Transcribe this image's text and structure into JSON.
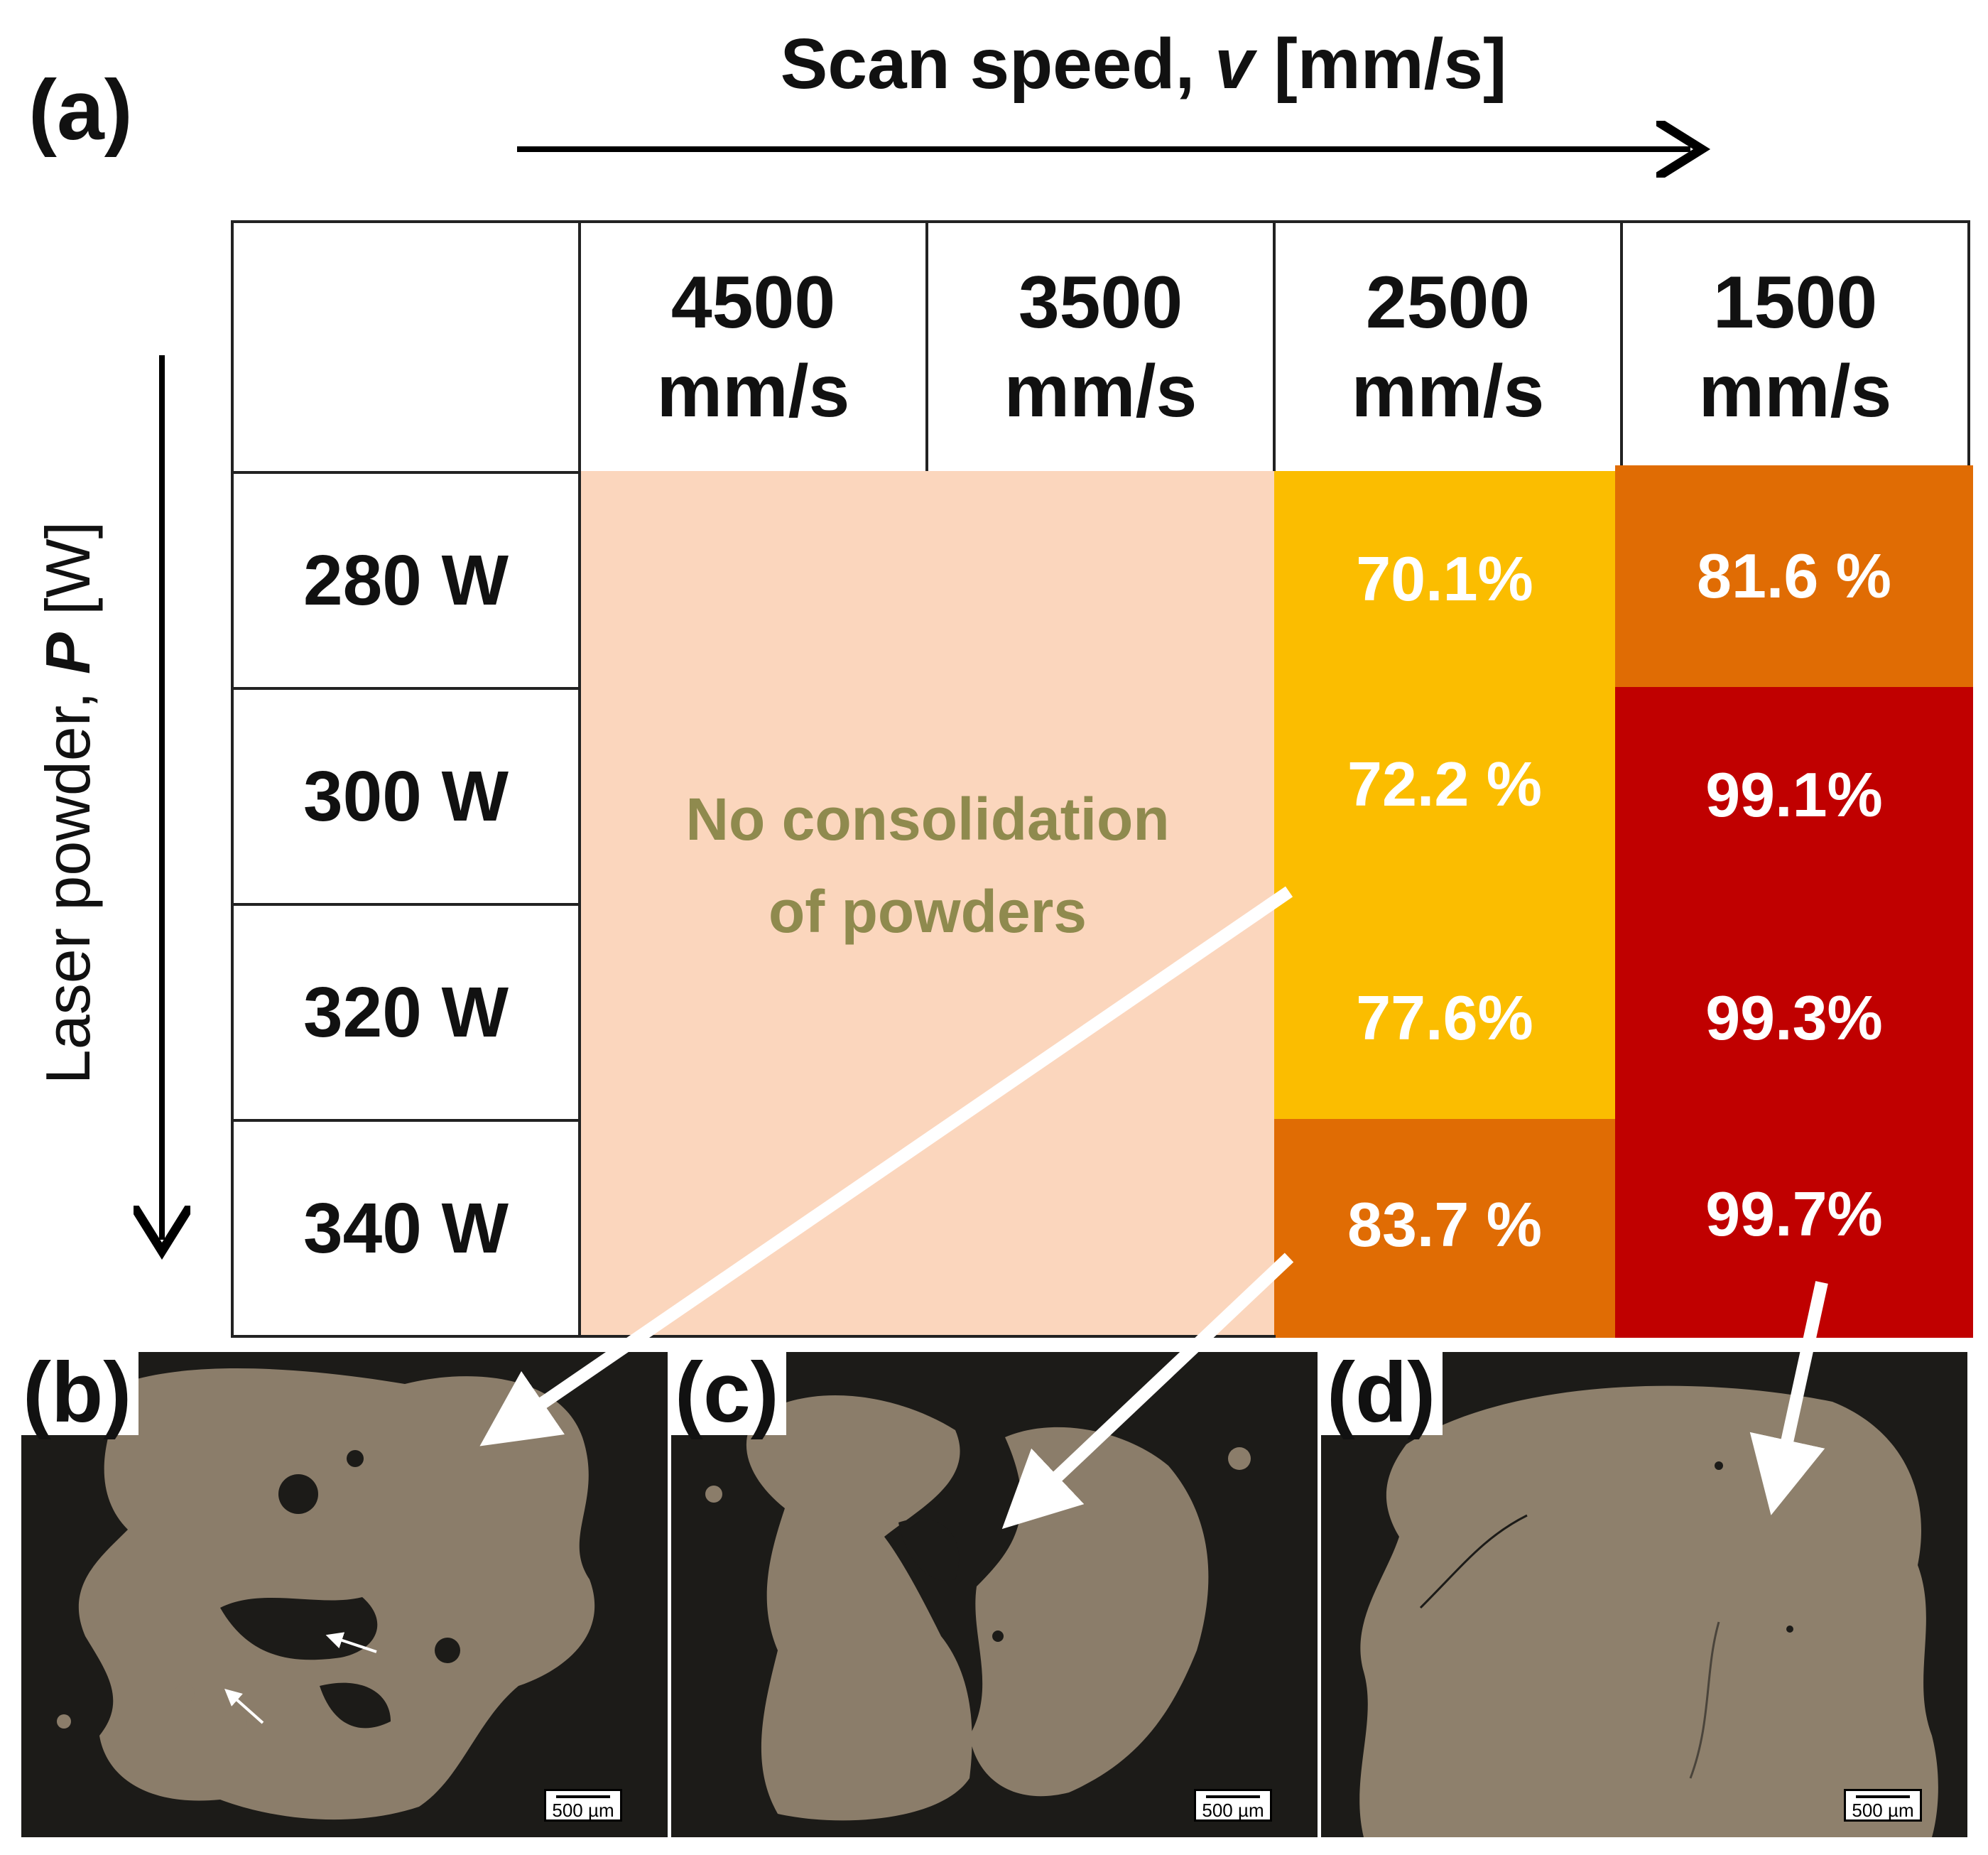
{
  "panels": {
    "a": "(a)",
    "b": "(b)",
    "c": "(c)",
    "d": "(d)"
  },
  "axes": {
    "scan_prefix": "Scan speed, ",
    "scan_var": "v",
    "scan_unit": " [mm/s]",
    "power_prefix": "Laser powder, ",
    "power_var": "P",
    "power_unit": " [W]"
  },
  "table": {
    "columns": [
      {
        "value": "4500",
        "unit": "mm/s"
      },
      {
        "value": "3500",
        "unit": "mm/s"
      },
      {
        "value": "2500",
        "unit": "mm/s"
      },
      {
        "value": "1500",
        "unit": "mm/s"
      }
    ],
    "rows": [
      "280 W",
      "300 W",
      "320 W",
      "340 W"
    ],
    "no_consolidation_line1": "No consolidation",
    "no_consolidation_line2": "of powders",
    "col_2500": [
      "70.1%",
      "72.2 %",
      "77.6%",
      "83.7 %"
    ],
    "col_1500": [
      "81.6 %",
      "99.1%",
      "99.3%",
      "99.7%"
    ]
  },
  "colors": {
    "no_consolidation": "#fbd6bd",
    "yellow": "#fbbd00",
    "orange": "#e06c04",
    "red": "#c00000"
  },
  "micrographs": {
    "scale_b": "500 µm",
    "scale_c": "500 µm",
    "scale_d": "500 µm"
  }
}
